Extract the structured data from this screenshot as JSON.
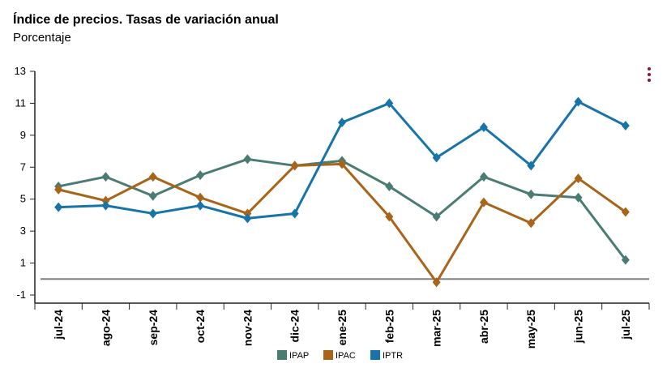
{
  "header": {
    "title": "Índice de precios. Tasas de variación anual",
    "subtitle": "Porcentaje"
  },
  "menu": {
    "icon": "more-vertical-icon",
    "color": "#8a1538"
  },
  "chart_data": {
    "type": "line",
    "categories": [
      "jul-24",
      "ago-24",
      "sep-24",
      "oct-24",
      "nov-24",
      "dic-24",
      "ene-25",
      "feb-25",
      "mar-25",
      "abr-25",
      "may-25",
      "jun-25",
      "jul-25"
    ],
    "ylim": [
      -1,
      13
    ],
    "yticks": [
      -1,
      1,
      3,
      5,
      7,
      9,
      11,
      13
    ],
    "reference_line": 0,
    "legend_position": "bottom",
    "grid": false,
    "series": [
      {
        "name": "IPAP",
        "color": "#4a7c74",
        "values": [
          5.8,
          6.4,
          5.2,
          6.5,
          7.5,
          7.1,
          7.4,
          5.8,
          3.9,
          6.4,
          5.3,
          5.1,
          1.2
        ]
      },
      {
        "name": "IPAC",
        "color": "#a86418",
        "values": [
          5.6,
          4.9,
          6.4,
          5.1,
          4.1,
          7.1,
          7.2,
          3.9,
          -0.2,
          4.8,
          3.5,
          6.3,
          4.2
        ]
      },
      {
        "name": "IPTR",
        "color": "#1874a8",
        "values": [
          4.5,
          4.6,
          4.1,
          4.6,
          3.8,
          4.1,
          9.8,
          11.0,
          7.6,
          9.5,
          7.1,
          11.1,
          9.6
        ]
      }
    ]
  }
}
